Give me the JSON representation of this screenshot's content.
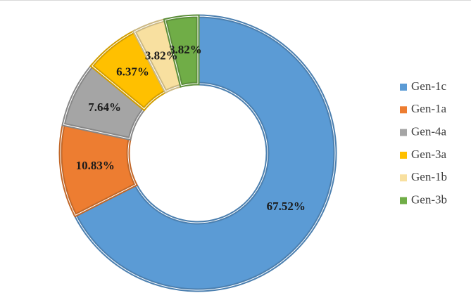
{
  "chart_data": {
    "type": "donut",
    "categories": [
      "Gen-1c",
      "Gen-1a",
      "Gen-4a",
      "Gen-3a",
      "Gen-1b",
      "Gen-3b"
    ],
    "values": [
      67.52,
      10.83,
      7.64,
      6.37,
      3.82,
      3.82
    ],
    "value_labels": [
      "67.52%",
      "10.83%",
      "7.64%",
      "6.37%",
      "3.82%",
      "3.82%"
    ],
    "colors": [
      "#5b9bd5",
      "#ed7d31",
      "#a5a5a5",
      "#ffc000",
      "#f8e0a0",
      "#70ad47"
    ],
    "legend": "right"
  }
}
